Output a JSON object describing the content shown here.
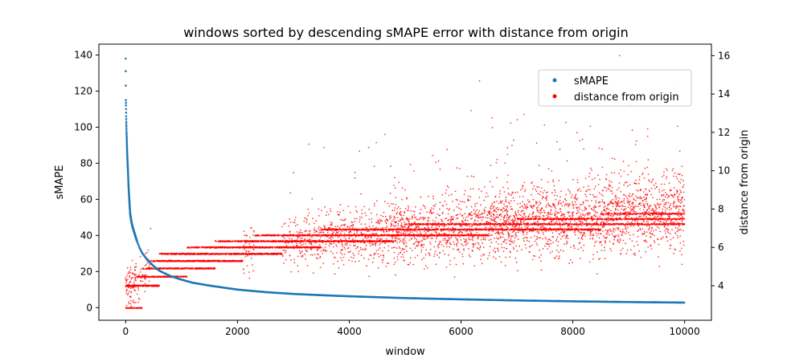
{
  "chart_data": {
    "type": "scatter",
    "title": "windows sorted by descending sMAPE error with distance from origin",
    "xlabel": "window",
    "ylabel": "sMAPE",
    "y2label": "distance from origin",
    "xlim": [
      -480,
      10480
    ],
    "ylim": [
      -7,
      146
    ],
    "y2lim": [
      2.2,
      16.6
    ],
    "xticks": [
      0,
      2000,
      4000,
      6000,
      8000,
      10000
    ],
    "yticks": [
      0,
      20,
      40,
      60,
      80,
      100,
      120,
      140
    ],
    "y2ticks": [
      4,
      6,
      8,
      10,
      12,
      14,
      16
    ],
    "legend_position": "top-right",
    "n_windows": 10000,
    "series": [
      {
        "name": "sMAPE",
        "axis": "left",
        "color": "#1f77b4",
        "x": [
          0,
          1,
          3,
          5,
          8,
          10,
          15,
          20,
          30,
          40,
          50,
          60,
          70,
          80,
          100,
          120,
          150,
          200,
          250,
          300,
          350,
          400,
          500,
          600,
          700,
          800,
          1000,
          1200,
          1500,
          2000,
          2500,
          3000,
          3500,
          4000,
          4500,
          5000,
          6000,
          7000,
          8000,
          9000,
          10000
        ],
        "y": [
          138,
          131,
          115,
          112,
          106,
          103,
          97,
          92,
          83,
          76,
          68,
          62,
          57,
          52,
          48,
          45,
          42,
          37,
          33,
          30,
          28,
          26,
          23,
          20.5,
          19,
          17.5,
          15.5,
          13.8,
          12.2,
          10,
          8.6,
          7.6,
          6.9,
          6.3,
          5.8,
          5.3,
          4.6,
          4,
          3.5,
          3.1,
          2.8
        ]
      },
      {
        "name": "distance from origin",
        "axis": "right",
        "color": "#ff0000",
        "bands": [
          {
            "x": [
              0,
              300
            ],
            "y": 2.83,
            "density": 0.25
          },
          {
            "x": [
              0,
              600
            ],
            "y": 4.0,
            "density": 0.35
          },
          {
            "x": [
              200,
              1100
            ],
            "y": 4.47,
            "density": 0.25
          },
          {
            "x": [
              300,
              1600
            ],
            "y": 4.9,
            "density": 0.25
          },
          {
            "x": [
              450,
              2100
            ],
            "y": 5.29,
            "density": 0.28
          },
          {
            "x": [
              600,
              2800
            ],
            "y": 5.66,
            "density": 0.28
          },
          {
            "x": [
              900,
              3500
            ],
            "y": 6.0,
            "density": 0.28
          },
          {
            "x": [
              1300,
              4800
            ],
            "y": 6.32,
            "density": 0.25
          },
          {
            "x": [
              2300,
              6500
            ],
            "y": 6.63,
            "density": 0.22
          },
          {
            "x": [
              3500,
              8500
            ],
            "y": 6.93,
            "density": 0.18
          },
          {
            "x": [
              5000,
              10000
            ],
            "y": 7.21,
            "density": 0.16
          },
          {
            "x": [
              7000,
              10000
            ],
            "y": 7.48,
            "density": 0.15
          },
          {
            "x": [
              8500,
              10000
            ],
            "y": 7.75,
            "density": 0.14
          }
        ],
        "trend": {
          "x": [
            0,
            500,
            1000,
            2000,
            3000,
            4000,
            5000,
            6000,
            7000,
            8000,
            9000,
            10000
          ],
          "mean": [
            3.8,
            5.0,
            5.4,
            5.95,
            6.3,
            6.55,
            6.8,
            7.05,
            7.3,
            7.5,
            7.7,
            7.9
          ],
          "spread": [
            0.5,
            0.55,
            0.6,
            0.65,
            0.7,
            0.75,
            0.8,
            0.85,
            0.9,
            0.95,
            1.0,
            1.0
          ]
        },
        "max_value": 16.0,
        "min_value": 2.83
      }
    ]
  }
}
